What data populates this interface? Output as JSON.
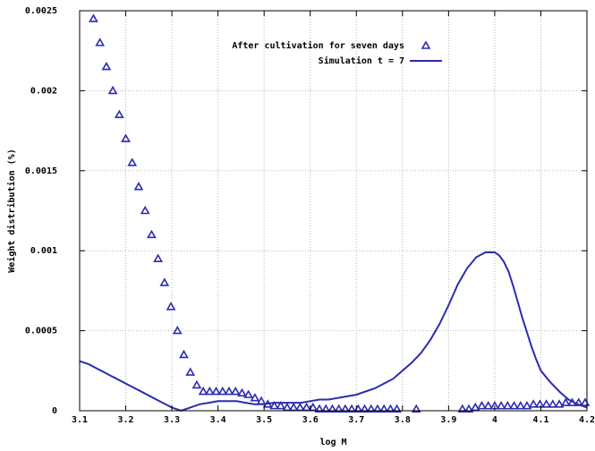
{
  "chart_data": {
    "type": "scatter",
    "xlabel": "log M",
    "ylabel": "Weight distribution (%)",
    "xlim": [
      3.1,
      4.2
    ],
    "ylim": [
      0,
      0.0025
    ],
    "x_ticks": [
      "3.1",
      "3.2",
      "3.3",
      "3.4",
      "3.5",
      "3.6",
      "3.7",
      "3.8",
      "3.9",
      "4",
      "4.1",
      "4.2"
    ],
    "y_ticks": [
      "0",
      "0.0005",
      "0.001",
      "0.0015",
      "0.002",
      "0.0025"
    ],
    "grid": true,
    "legend_position": "top-right",
    "colors": {
      "series": "#2b2bb0",
      "grid": "#b5b5b5",
      "frame": "#000000"
    },
    "series": [
      {
        "name": "After cultivation for seven days",
        "kind": "points",
        "marker": "triangle",
        "x": [
          3.13,
          3.144,
          3.158,
          3.172,
          3.186,
          3.2,
          3.214,
          3.228,
          3.242,
          3.256,
          3.27,
          3.284,
          3.298,
          3.312,
          3.326,
          3.34,
          3.354,
          3.368,
          3.382,
          3.396,
          3.41,
          3.424,
          3.438,
          3.452,
          3.466,
          3.48,
          3.494,
          3.508,
          3.522,
          3.536,
          3.55,
          3.564,
          3.578,
          3.592,
          3.606,
          3.62,
          3.634,
          3.648,
          3.662,
          3.676,
          3.69,
          3.704,
          3.718,
          3.732,
          3.746,
          3.76,
          3.774,
          3.788,
          3.83,
          3.93,
          3.944,
          3.958,
          3.972,
          3.986,
          4.0,
          4.014,
          4.028,
          4.042,
          4.056,
          4.07,
          4.084,
          4.098,
          4.112,
          4.126,
          4.14,
          4.154,
          4.168,
          4.182,
          4.196
        ],
        "y": [
          0.00245,
          0.0023,
          0.00215,
          0.002,
          0.00185,
          0.0017,
          0.00155,
          0.0014,
          0.00125,
          0.0011,
          0.00095,
          0.0008,
          0.00065,
          0.0005,
          0.00035,
          0.00024,
          0.00016,
          0.00012,
          0.00012,
          0.00012,
          0.00012,
          0.00012,
          0.00012,
          0.00011,
          0.0001,
          8e-05,
          6e-05,
          4e-05,
          3e-05,
          3e-05,
          2e-05,
          2e-05,
          2e-05,
          2e-05,
          2e-05,
          1e-05,
          1e-05,
          1e-05,
          1e-05,
          1e-05,
          1e-05,
          1e-05,
          1e-05,
          1e-05,
          1e-05,
          1e-05,
          1e-05,
          1e-05,
          1e-05,
          1e-05,
          1e-05,
          2e-05,
          3e-05,
          3e-05,
          3e-05,
          3e-05,
          3e-05,
          3e-05,
          3e-05,
          3e-05,
          4e-05,
          4e-05,
          4e-05,
          4e-05,
          4e-05,
          5e-05,
          5e-05,
          5e-05,
          5e-05
        ]
      },
      {
        "name": "Simulation t = 7",
        "kind": "line",
        "x": [
          3.1,
          3.12,
          3.14,
          3.16,
          3.18,
          3.2,
          3.22,
          3.24,
          3.26,
          3.28,
          3.3,
          3.32,
          3.34,
          3.36,
          3.38,
          3.4,
          3.42,
          3.44,
          3.46,
          3.48,
          3.5,
          3.52,
          3.54,
          3.56,
          3.58,
          3.6,
          3.62,
          3.64,
          3.66,
          3.68,
          3.7,
          3.72,
          3.74,
          3.76,
          3.78,
          3.8,
          3.82,
          3.84,
          3.86,
          3.88,
          3.9,
          3.92,
          3.94,
          3.96,
          3.98,
          4.0,
          4.01,
          4.02,
          4.03,
          4.04,
          4.05,
          4.06,
          4.07,
          4.08,
          4.09,
          4.1,
          4.12,
          4.14,
          4.16,
          4.18,
          4.2
        ],
        "y": [
          0.00031,
          0.00029,
          0.00026,
          0.00023,
          0.0002,
          0.00017,
          0.00014,
          0.00011,
          8e-05,
          5e-05,
          2e-05,
          0.0,
          2e-05,
          4e-05,
          5e-05,
          6e-05,
          6e-05,
          6e-05,
          5e-05,
          4e-05,
          4e-05,
          5e-05,
          5e-05,
          5e-05,
          5e-05,
          6e-05,
          7e-05,
          7e-05,
          8e-05,
          9e-05,
          0.0001,
          0.00012,
          0.00014,
          0.00017,
          0.0002,
          0.00025,
          0.0003,
          0.00036,
          0.00044,
          0.00054,
          0.00066,
          0.00079,
          0.00089,
          0.00096,
          0.00099,
          0.00099,
          0.00097,
          0.00093,
          0.00087,
          0.00078,
          0.00068,
          0.00058,
          0.00049,
          0.0004,
          0.00032,
          0.00025,
          0.00018,
          0.00012,
          7e-05,
          4e-05,
          2e-05
        ]
      }
    ]
  }
}
